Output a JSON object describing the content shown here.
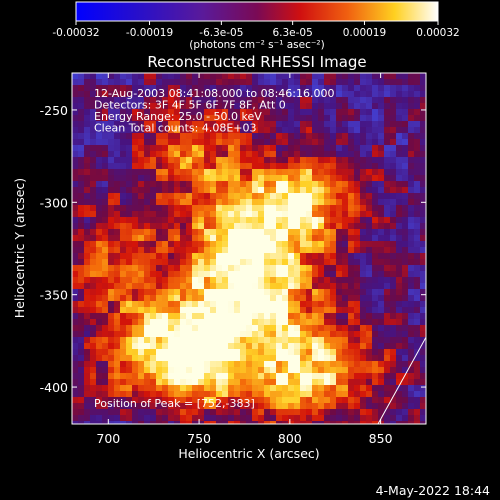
{
  "colorbar": {
    "ticks": [
      "-0.00032",
      "-0.00019",
      "-6.3e-05",
      "6.3e-05",
      "0.00019",
      "0.00032"
    ],
    "unit_label": "(photons cm⁻² s⁻¹ asec⁻²)",
    "range": [
      -0.00032,
      0.00032
    ]
  },
  "chart_data": {
    "type": "heatmap",
    "title": "Reconstructed RHESSI Image",
    "xlabel": "Heliocentric X (arcsec)",
    "ylabel": "Heliocentric Y (arcsec)",
    "xlim": [
      680,
      875
    ],
    "ylim": [
      -420,
      -230
    ],
    "x_ticks": [
      700,
      750,
      800,
      850
    ],
    "y_ticks": [
      -250,
      -300,
      -350,
      -400
    ],
    "annotations": [
      "12-Aug-2003 08:41:08.000 to 08:46:16.000",
      "Detectors: 3F 4F 5F 6F 7F 8F, Att 0",
      "Energy Range: 25.0 - 50.0 keV",
      "Clean    Total counts: 4.08E+03"
    ],
    "peak_label": "Position of Peak = [752,-383]",
    "peak": [
      752,
      -383
    ],
    "colormap": "blue-purple-red-yellow-white",
    "sources": [
      {
        "x": 752,
        "y": -383,
        "intensity": 1.0
      },
      {
        "x": 808,
        "y": -300,
        "intensity": 0.85
      },
      {
        "x": 790,
        "y": -350,
        "intensity": 0.75
      },
      {
        "x": 770,
        "y": -310,
        "intensity": 0.7
      },
      {
        "x": 800,
        "y": -395,
        "intensity": 0.7
      },
      {
        "x": 720,
        "y": -380,
        "intensity": 0.65
      },
      {
        "x": 745,
        "y": -270,
        "intensity": 0.55
      },
      {
        "x": 705,
        "y": -330,
        "intensity": 0.55
      },
      {
        "x": 830,
        "y": -390,
        "intensity": 0.5
      },
      {
        "x": 760,
        "y": -345,
        "intensity": 0.5
      }
    ]
  },
  "footer": {
    "date": "4-May-2022 18:44"
  }
}
